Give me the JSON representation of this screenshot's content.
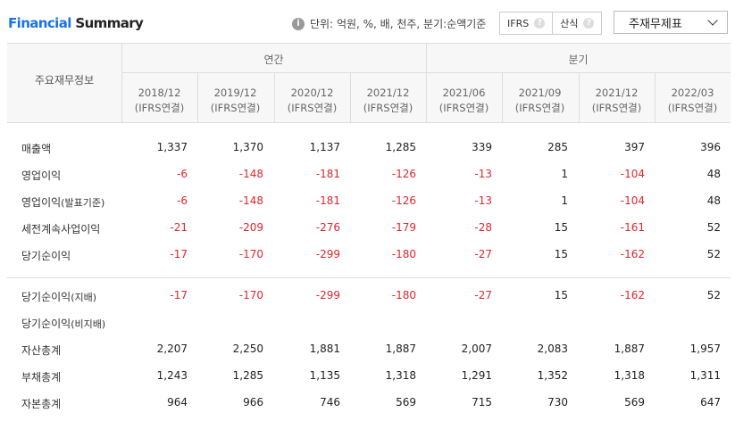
{
  "header": {
    "title_part1": "Financial",
    "title_part2": "Summary",
    "unit_text": "단위: 억원, %, 배, 천주, 분기:순액기준",
    "ifrs_label": "IFRS",
    "calc_label": "산식",
    "select_value": "주재무제표"
  },
  "table": {
    "row_header": "주요재무정보",
    "group_annual": "연간",
    "group_quarterly": "분기",
    "columns": [
      {
        "period": "2018/12",
        "basis": "(IFRS연결)"
      },
      {
        "period": "2019/12",
        "basis": "(IFRS연결)"
      },
      {
        "period": "2020/12",
        "basis": "(IFRS연결)"
      },
      {
        "period": "2021/12",
        "basis": "(IFRS연결)"
      },
      {
        "period": "2021/06",
        "basis": "(IFRS연결)"
      },
      {
        "period": "2021/09",
        "basis": "(IFRS연결)"
      },
      {
        "period": "2021/12",
        "basis": "(IFRS연결)"
      },
      {
        "period": "2022/03",
        "basis": "(IFRS연결)"
      }
    ],
    "rows": [
      {
        "label": "매출액",
        "sub": "",
        "values": [
          "1,337",
          "1,370",
          "1,137",
          "1,285",
          "339",
          "285",
          "397",
          "396"
        ]
      },
      {
        "label": "영업이익",
        "sub": "",
        "values": [
          "-6",
          "-148",
          "-181",
          "-126",
          "-13",
          "1",
          "-104",
          "48"
        ]
      },
      {
        "label": "영업이익",
        "sub": "(발표기준)",
        "values": [
          "-6",
          "-148",
          "-181",
          "-126",
          "-13",
          "1",
          "-104",
          "48"
        ]
      },
      {
        "label": "세전계속사업이익",
        "sub": "",
        "values": [
          "-21",
          "-209",
          "-276",
          "-179",
          "-28",
          "15",
          "-161",
          "52"
        ]
      },
      {
        "label": "당기순이익",
        "sub": "",
        "values": [
          "-17",
          "-170",
          "-299",
          "-180",
          "-27",
          "15",
          "-162",
          "52"
        ]
      },
      {
        "label": "당기순이익",
        "sub": "(지배)",
        "values": [
          "-17",
          "-170",
          "-299",
          "-180",
          "-27",
          "15",
          "-162",
          "52"
        ]
      },
      {
        "label": "당기순이익",
        "sub": "(비지배)",
        "values": [
          "",
          "",
          "",
          "",
          "",
          "",
          "",
          ""
        ]
      },
      {
        "label": "자산총계",
        "sub": "",
        "values": [
          "2,207",
          "2,250",
          "1,881",
          "1,887",
          "2,007",
          "2,083",
          "1,887",
          "1,957"
        ]
      },
      {
        "label": "부채총계",
        "sub": "",
        "values": [
          "1,243",
          "1,285",
          "1,135",
          "1,318",
          "1,291",
          "1,352",
          "1,318",
          "1,311"
        ]
      },
      {
        "label": "자본총계",
        "sub": "",
        "values": [
          "964",
          "966",
          "746",
          "569",
          "715",
          "730",
          "569",
          "647"
        ]
      }
    ]
  }
}
